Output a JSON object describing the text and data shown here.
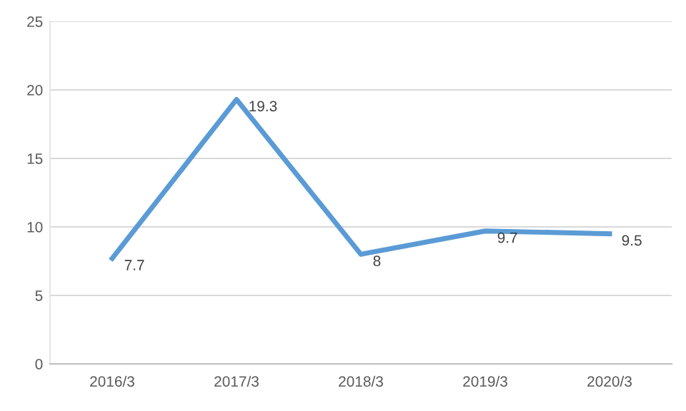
{
  "chart_data": {
    "type": "line",
    "categories": [
      "2016/3",
      "2017/3",
      "2018/3",
      "2019/3",
      "2020/3"
    ],
    "series": [
      {
        "color": "#5b9bd5",
        "values": [
          7.7,
          19.3,
          8,
          9.7,
          9.5
        ]
      }
    ],
    "ylim": [
      0,
      25
    ],
    "yticks": [
      0,
      5,
      10,
      15,
      20,
      25
    ],
    "grid": "y",
    "data_labels": true,
    "line_style": "solid"
  }
}
